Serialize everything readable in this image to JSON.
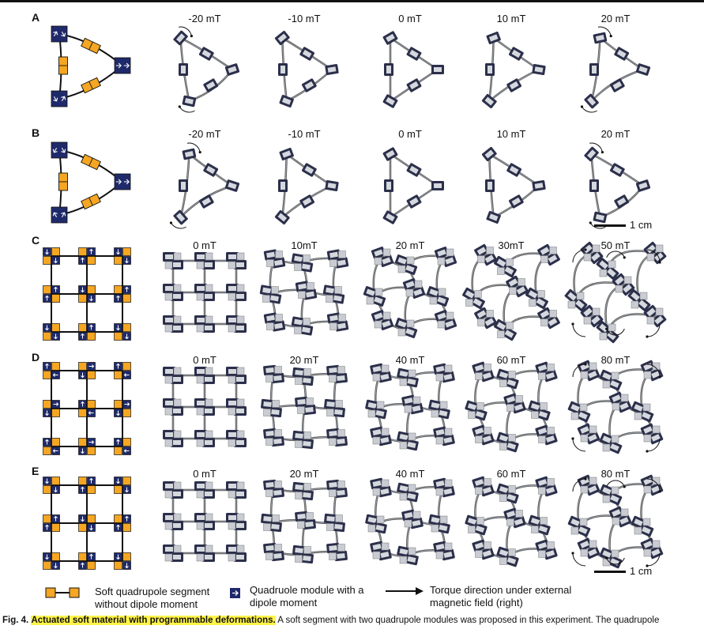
{
  "panels": [
    {
      "letter": "A",
      "fields": [
        "-20 mT",
        "-10 mT",
        "0 mT",
        "10 mT",
        "20 mT"
      ]
    },
    {
      "letter": "B",
      "fields": [
        "-20 mT",
        "-10 mT",
        "0 mT",
        "10 mT",
        "20 mT"
      ]
    },
    {
      "letter": "C",
      "fields": [
        "0 mT",
        "10mT",
        "20 mT",
        "30mT",
        "50 mT"
      ]
    },
    {
      "letter": "D",
      "fields": [
        "0 mT",
        "20 mT",
        "40 mT",
        "60 mT",
        "80 mT"
      ]
    },
    {
      "letter": "E",
      "fields": [
        "0 mT",
        "20 mT",
        "40 mT",
        "60 mT",
        "80 mT"
      ]
    }
  ],
  "scalebars": [
    "1 cm",
    "1 cm"
  ],
  "legend": {
    "segment": "Soft quadrupole segment\nwithout dipole moment",
    "module": "Quadruole module with a\ndipole moment",
    "torque": "Torque direction under external\nmagnetic field (right)"
  },
  "caption": {
    "label": "Fig. 4.",
    "title": "Actuated soft material with programmable deformations.",
    "text": " A soft segment with two quadrupole modules was proposed in this experiment. The quadrupole"
  },
  "colors": {
    "orange": "#f5a623",
    "navy": "#1f2a6b",
    "photo_module": "#2b2f4a",
    "photo_link": "#9aa0a6"
  }
}
